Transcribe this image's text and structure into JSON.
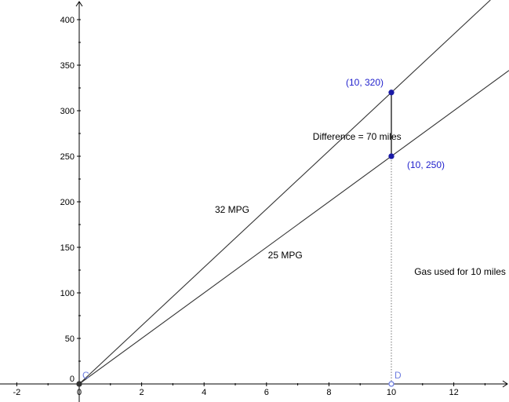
{
  "chart_data": {
    "type": "line",
    "title": "",
    "xlabel": "",
    "ylabel": "",
    "xlim": [
      -2.5,
      13.8
    ],
    "ylim": [
      -3,
      415
    ],
    "grid": false,
    "x_ticks": [
      -2,
      0,
      2,
      4,
      6,
      8,
      10,
      12
    ],
    "x_tick_labels": [
      "-2",
      "0",
      "2",
      "4",
      "6",
      "8",
      "10",
      "12"
    ],
    "y_ticks": [
      0,
      50,
      100,
      150,
      200,
      250,
      300,
      350,
      400
    ],
    "y_tick_labels": [
      "0",
      "50",
      "100",
      "150",
      "200",
      "250",
      "300",
      "350",
      "400"
    ],
    "series": [
      {
        "name": "32 MPG",
        "slope": 32,
        "x": [
          0,
          10
        ],
        "y": [
          0,
          320
        ]
      },
      {
        "name": "25 MPG",
        "slope": 25,
        "x": [
          0,
          10
        ],
        "y": [
          0,
          250
        ]
      }
    ],
    "points": [
      {
        "label": "(10, 320)",
        "x": 10,
        "y": 320,
        "color": "#1a1aa6"
      },
      {
        "label": "(10, 250)",
        "x": 10,
        "y": 250,
        "color": "#1a1aa6"
      },
      {
        "label": "C",
        "x": 0,
        "y": 0,
        "color": "#333333"
      },
      {
        "label": "D",
        "x": 10,
        "y": 0,
        "color": "#6f7fe0"
      }
    ],
    "annotations": [
      {
        "text": "32 MPG",
        "x": 4.9,
        "y": 188
      },
      {
        "text": "25 MPG",
        "x": 6.6,
        "y": 138
      },
      {
        "text": "Difference = 70 miles",
        "x": 8.9,
        "y": 268
      },
      {
        "text": "Gas used for 10 miles",
        "x": 12.2,
        "y": 120
      }
    ],
    "segments": [
      {
        "from": [
          10,
          250
        ],
        "to": [
          10,
          320
        ],
        "style": "solid"
      },
      {
        "from": [
          10,
          0
        ],
        "to": [
          10,
          250
        ],
        "style": "dotted"
      }
    ]
  }
}
